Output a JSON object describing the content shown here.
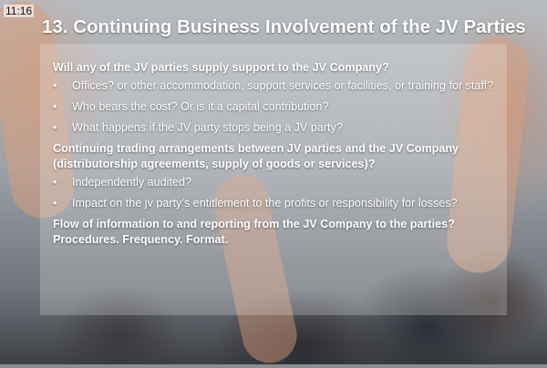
{
  "clock": "11:16",
  "slide": {
    "title": "13. Continuing Business Involvement of the JV Parties",
    "bullet_glyph": "•",
    "sections": [
      {
        "heading": "Will any of the JV parties supply support to the JV Company?",
        "bullets": [
          "Offices? or other accommodation, support services or facilities, or training for staff?",
          "Who bears the cost? Or is it a capital contribution?",
          "What happens if the JV party stops being a JV party?"
        ]
      },
      {
        "heading": "Continuing trading arrangements between JV parties and the JV Company (distributorship agreements, supply of goods or services)?",
        "bullets": [
          "Independently audited?",
          "Impact on the jv party’s entitlement to the profits or responsibility for losses?"
        ]
      },
      {
        "heading": "Flow of information to and reporting from the JV Company to the parties? Procedures. Frequency. Format.",
        "bullets": []
      }
    ]
  }
}
